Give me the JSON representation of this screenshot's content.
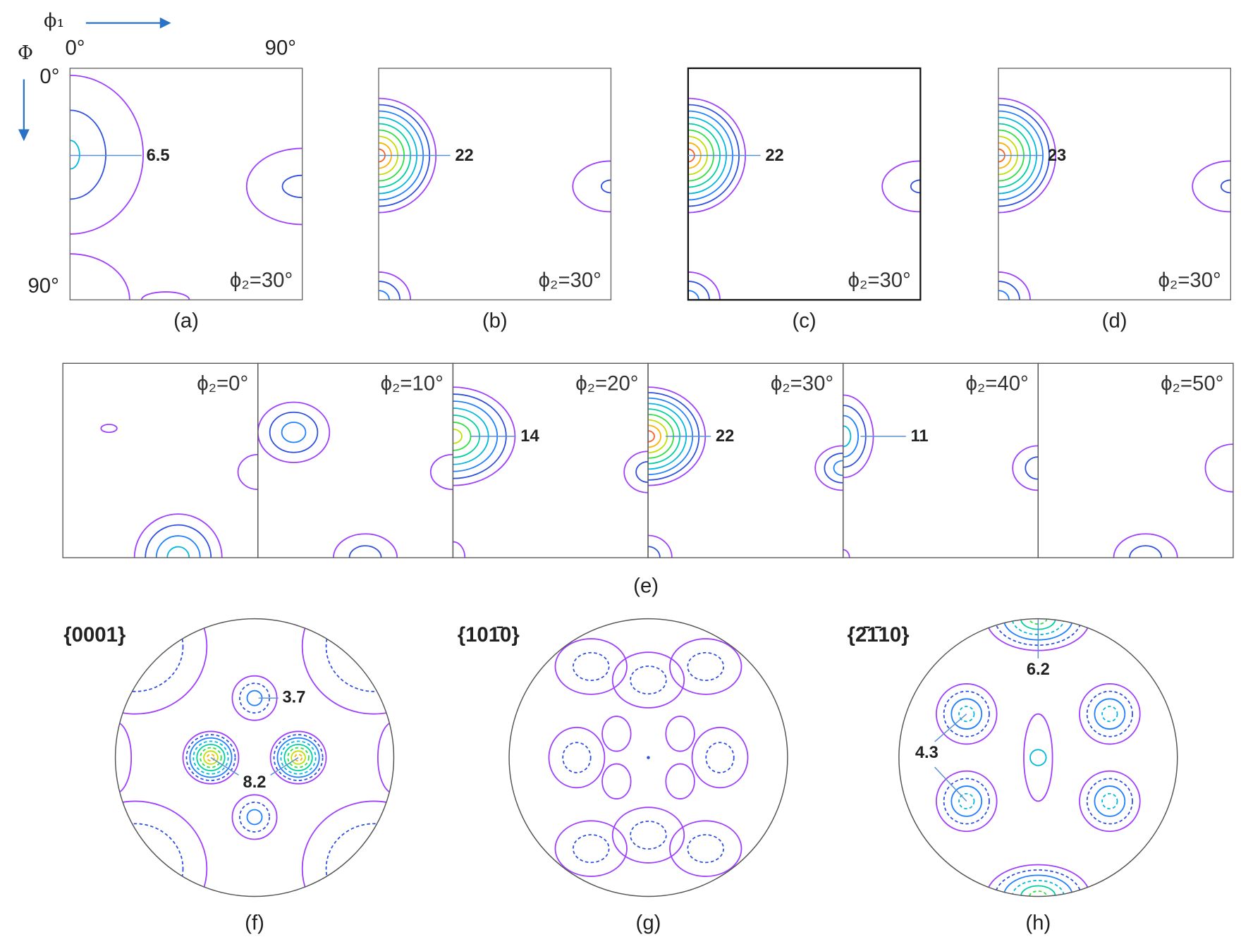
{
  "odf_axes": {
    "phi1": "ϕ₁",
    "Phi": "Φ",
    "phi1_start": "0°",
    "phi1_end": "90°",
    "Phi_start": "0°",
    "Phi_end": "90°"
  },
  "top_panels": [
    {
      "label": "(a)",
      "peak": "6.5",
      "section": "ϕ₂=30°"
    },
    {
      "label": "(b)",
      "peak": "22",
      "section": "ϕ₂=30°"
    },
    {
      "label": "(c)",
      "peak": "22",
      "section": "ϕ₂=30°"
    },
    {
      "label": "(d)",
      "peak": "23",
      "section": "ϕ₂=30°"
    }
  ],
  "section_series": {
    "label": "(e)",
    "sections": [
      {
        "section": "ϕ₂=0°"
      },
      {
        "section": "ϕ₂=10°"
      },
      {
        "section": "ϕ₂=20°",
        "peak": "14"
      },
      {
        "section": "ϕ₂=30°",
        "peak": "22"
      },
      {
        "section": "ϕ₂=40°",
        "peak": "11"
      },
      {
        "section": "ϕ₂=50°"
      }
    ]
  },
  "pole_figures": [
    {
      "plane": "{0001}",
      "label": "(f)",
      "peaks": [
        "3.7",
        "8.2"
      ]
    },
    {
      "plane": "{101̄0}",
      "label": "(g)"
    },
    {
      "plane": "{2̄1̄10}",
      "label": "(h)",
      "peaks": [
        "6.2",
        "4.3"
      ]
    }
  ]
}
